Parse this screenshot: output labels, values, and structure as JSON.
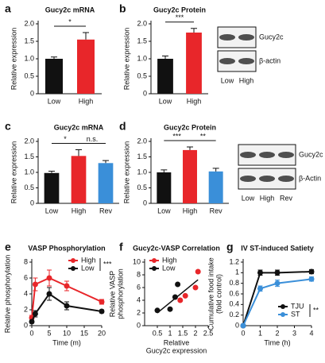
{
  "chart_data": [
    {
      "type": "bar",
      "panel_label": "a",
      "title": "Gucy2c mRNA",
      "categories": [
        "Low",
        "High"
      ],
      "values": [
        1.0,
        1.55
      ],
      "errors": [
        0.05,
        0.2
      ],
      "colors": [
        "#111111",
        "#e8262a"
      ],
      "ylim": [
        0,
        2
      ],
      "yticks": [
        0,
        0.5,
        {
          "value": 1,
          "label": "1.0"
        },
        1.5,
        {
          "value": 2,
          "label": "2.0"
        }
      ],
      "ylabel": [
        "Relative expression"
      ],
      "significance": [
        "*"
      ]
    },
    {
      "type": "bar",
      "panel_label": "b",
      "title": "Gucy2c Protein",
      "categories": [
        "Low",
        "High"
      ],
      "values": [
        1.0,
        1.75
      ],
      "errors": [
        0.08,
        0.12
      ],
      "colors": [
        "#111111",
        "#e8262a"
      ],
      "ylim": [
        0,
        2
      ],
      "yticks": [
        0,
        0.5,
        {
          "value": 1,
          "label": "1.0"
        },
        1.5,
        {
          "value": 2,
          "label": "2.0"
        }
      ],
      "ylabel": [
        "Relative expression"
      ],
      "significance": [
        "***"
      ],
      "blot": {
        "rows": [
          "Gucy2c",
          "β-actin"
        ],
        "lanes": [
          "Low",
          "High"
        ]
      }
    },
    {
      "type": "bar",
      "panel_label": "c",
      "title": "Gucy2c mRNA",
      "categories": [
        "Low",
        "High",
        "Rev"
      ],
      "values": [
        0.98,
        1.53,
        1.3
      ],
      "errors": [
        0.06,
        0.2,
        0.08
      ],
      "colors": [
        "#111111",
        "#e8262a",
        "#3a8fd9"
      ],
      "ylim": [
        0,
        2
      ],
      "yticks": [
        0,
        0.5,
        {
          "value": 1,
          "label": "1.0"
        },
        1.5,
        {
          "value": 2,
          "label": "2.0"
        }
      ],
      "ylabel": [
        "Relative expression"
      ],
      "significance": [
        "*",
        "n.s."
      ]
    },
    {
      "type": "bar",
      "panel_label": "d",
      "title": "Gucy2c Protein",
      "categories": [
        "Low",
        "High",
        "Rev"
      ],
      "values": [
        1.0,
        1.72,
        1.03
      ],
      "errors": [
        0.08,
        0.1,
        0.1
      ],
      "colors": [
        "#111111",
        "#e8262a",
        "#3a8fd9"
      ],
      "ylim": [
        0,
        2
      ],
      "yticks": [
        0,
        0.5,
        {
          "value": 1,
          "label": "1.0"
        },
        1.5,
        {
          "value": 2,
          "label": "2.0"
        }
      ],
      "ylabel": [
        "Relative expression"
      ],
      "significance": [
        "***",
        "**"
      ],
      "blot": {
        "rows": [
          "Gucy2c",
          "β-Actin"
        ],
        "lanes": [
          "Low",
          "High",
          "Rev"
        ]
      }
    },
    {
      "type": "line",
      "panel_label": "e",
      "title": "VASP Phosphorylation",
      "x": [
        0,
        1,
        5,
        10,
        20
      ],
      "series": [
        {
          "name": "High",
          "color": "#e8262a",
          "values": [
            1.0,
            5.2,
            6.0,
            5.0,
            3.0
          ],
          "errors": [
            0.3,
            0.8,
            1.0,
            0.6,
            0.3
          ]
        },
        {
          "name": "Low",
          "color": "#111111",
          "values": [
            0.5,
            1.5,
            4.0,
            2.5,
            1.8
          ],
          "errors": [
            0.2,
            0.4,
            0.8,
            0.5,
            0.2
          ]
        }
      ],
      "xlim": [
        0,
        20
      ],
      "xticks": [
        0,
        5,
        10,
        15,
        20
      ],
      "ylim": [
        0,
        8
      ],
      "yticks": [
        0,
        2,
        4,
        6,
        8
      ],
      "xlabel": [
        "Time (m)"
      ],
      "ylabel": [
        "Relative phosphorylation"
      ],
      "legend": "upper right",
      "significance": "***"
    },
    {
      "type": "scatter",
      "panel_label": "f",
      "title": "Gucy2c-VASP Correlation",
      "series": [
        {
          "name": "High",
          "color": "#e8262a",
          "x": [
            1.4,
            1.6,
            2.0,
            2.1
          ],
          "values": [
            4.0,
            4.7,
            6.0,
            8.5
          ]
        },
        {
          "name": "Low",
          "color": "#111111",
          "x": [
            0.5,
            1.0,
            1.2,
            1.3
          ],
          "values": [
            2.4,
            2.6,
            4.5,
            6.5
          ]
        }
      ],
      "xlim": [
        0,
        2.5
      ],
      "xticks": [
        0.5,
        1,
        1.5,
        2,
        2.5
      ],
      "ylim": [
        0,
        10
      ],
      "yticks": [
        0,
        2,
        4,
        6,
        8,
        10
      ],
      "xlabel": [
        "Relative",
        "Gucy2c expression"
      ],
      "ylabel": [
        "Relative VASP",
        "phosphorylation"
      ],
      "legend": "upper left"
    },
    {
      "type": "line",
      "panel_label": "g",
      "title": "IV ST-induced Satiety",
      "x": [
        0,
        1,
        2,
        4
      ],
      "series": [
        {
          "name": "TJU",
          "color": "#111111",
          "values": [
            0,
            1.0,
            1.0,
            1.02
          ],
          "errors": [
            0,
            0.05,
            0.05,
            0.04
          ]
        },
        {
          "name": "ST",
          "color": "#3a8fd9",
          "values": [
            0,
            0.7,
            0.8,
            0.88
          ],
          "errors": [
            0,
            0.05,
            0.06,
            0.04
          ]
        }
      ],
      "xlim": [
        0,
        4
      ],
      "xticks": [
        0,
        1,
        2,
        3,
        4
      ],
      "ylim": [
        0,
        1.2
      ],
      "yticks": [
        0,
        0.2,
        0.4,
        0.6,
        0.8,
        1,
        1.2
      ],
      "xlabel": [
        "Time (h)"
      ],
      "ylabel": [
        "Cumulative food intake",
        "(fold control)"
      ],
      "legend": "lower right",
      "significance": "**"
    }
  ]
}
